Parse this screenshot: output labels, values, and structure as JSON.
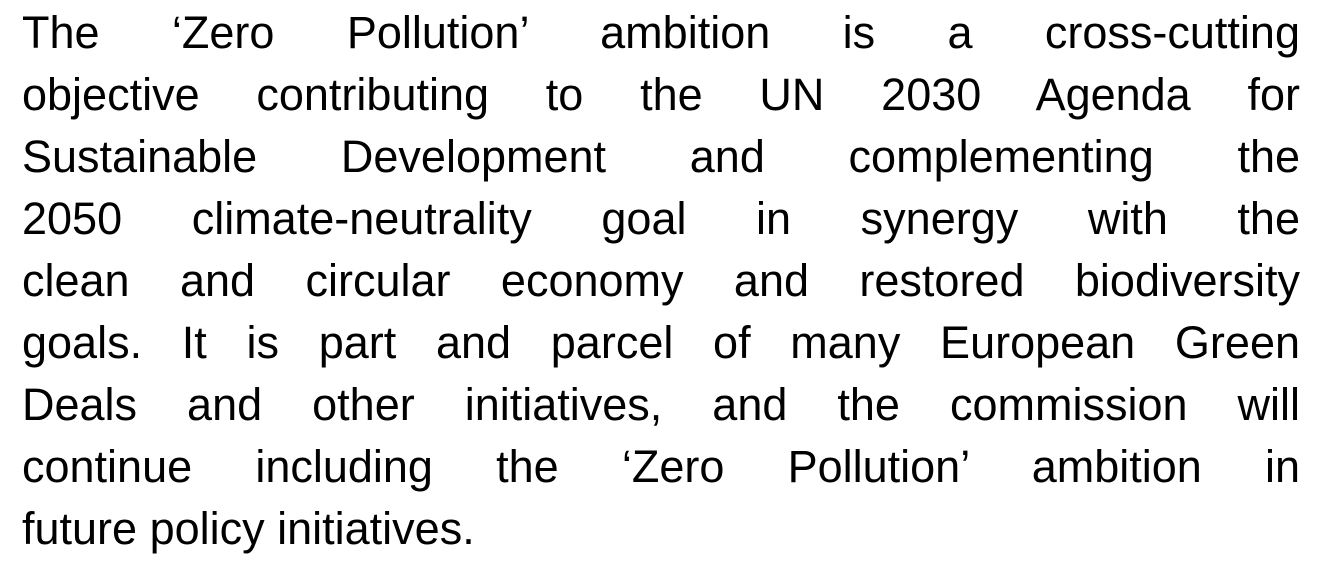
{
  "paragraph": {
    "lines": [
      "The ‘Zero Pollution’ ambition is a cross-cutting",
      "objective contributing to the UN 2030 Agenda for",
      "Sustainable Development and complementing the",
      "2050 climate-neutrality goal in synergy with the",
      "clean and circular economy and restored biodiversity",
      "goals. It is part and parcel of many European Green",
      "Deals and other initiatives, and the commission will",
      "continue including the ‘Zero Pollution’ ambition in",
      "future policy initiatives."
    ]
  }
}
